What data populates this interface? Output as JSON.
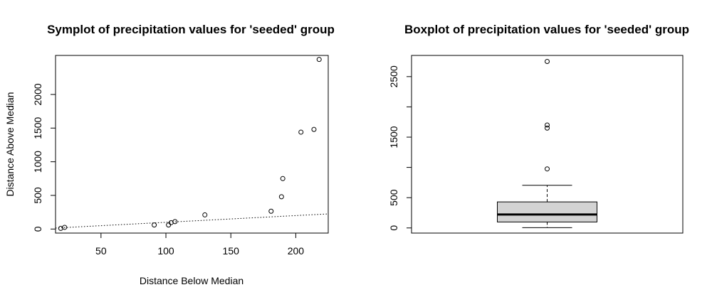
{
  "chart_data": [
    {
      "type": "scatter",
      "title": "Symplot of precipitation values for 'seeded' group",
      "xlabel": "Distance Below Median",
      "ylabel": "Distance Above Median",
      "xlim": [
        15,
        225
      ],
      "ylim": [
        -60,
        2580
      ],
      "xticks": [
        50,
        100,
        150,
        200
      ],
      "yticks": [
        0,
        500,
        1000,
        1500,
        2000
      ],
      "points": [
        {
          "x": 19,
          "y": 10
        },
        {
          "x": 22,
          "y": 25
        },
        {
          "x": 91,
          "y": 60
        },
        {
          "x": 102,
          "y": 60
        },
        {
          "x": 104,
          "y": 95
        },
        {
          "x": 107,
          "y": 110
        },
        {
          "x": 130,
          "y": 210
        },
        {
          "x": 181,
          "y": 265
        },
        {
          "x": 189,
          "y": 480
        },
        {
          "x": 190,
          "y": 750
        },
        {
          "x": 204,
          "y": 1440
        },
        {
          "x": 214,
          "y": 1480
        },
        {
          "x": 218,
          "y": 2520
        }
      ],
      "reference_line": {
        "slope": 1,
        "intercept": 0,
        "style": "dotted"
      }
    },
    {
      "type": "box",
      "title": "Boxplot of precipitation values for 'seeded' group",
      "ylim": [
        -85,
        2850
      ],
      "yticks": [
        0,
        500,
        1500,
        2500
      ],
      "min": 4,
      "q1": 98,
      "median": 222,
      "q3": 430,
      "whisker_high": 704,
      "outliers": [
        975,
        1650,
        1700,
        2750
      ],
      "box_fill": "#d3d3d3"
    }
  ]
}
